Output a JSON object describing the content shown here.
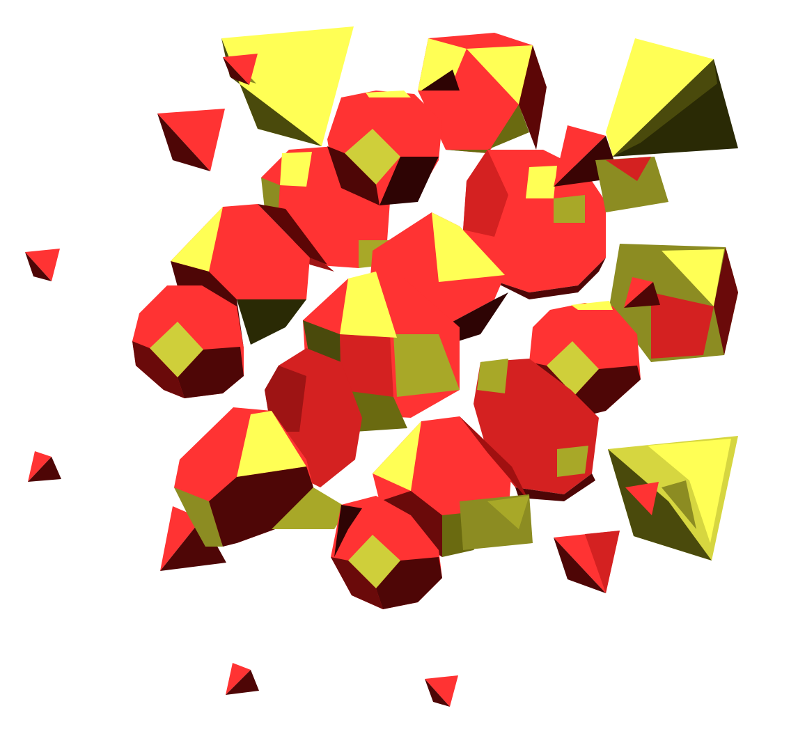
{
  "scene": {
    "background": "#ffffff",
    "palette": {
      "red": "#ff3333",
      "red_mid": "#d42121",
      "red_dark": "#9e1414",
      "red_darkest": "#4e0606",
      "yellow": "#ffff55",
      "yellow_mid": "#d6d640",
      "olive": "#8c8c22",
      "olive_dark": "#4a4a0c",
      "olive_darkest": "#2a2a05"
    },
    "object_types": [
      "truncated-octahedron",
      "truncated-tetrahedron",
      "tetrahedron"
    ]
  }
}
